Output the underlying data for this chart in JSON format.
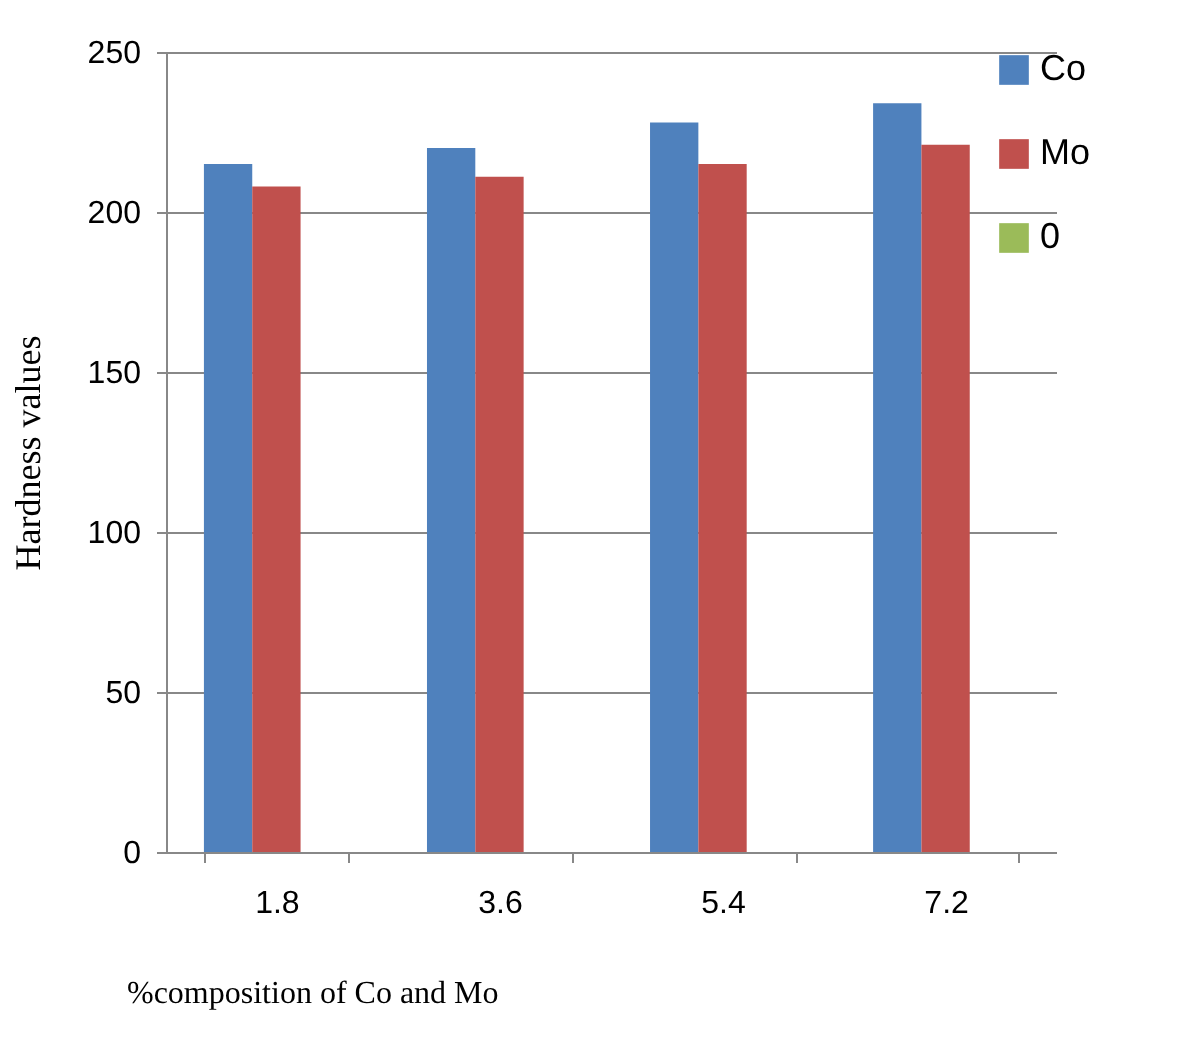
{
  "chart_data": {
    "type": "bar",
    "xlabel": "%composition of Co and Mo",
    "ylabel": "Hardness values",
    "categories": [
      "1.8",
      "3.6",
      "5.4",
      "7.2"
    ],
    "series": [
      {
        "name": "Co",
        "color": "#4f81bd",
        "values": [
          215,
          220,
          228,
          234
        ]
      },
      {
        "name": "Mo",
        "color": "#c0504d",
        "values": [
          208,
          211,
          215,
          221
        ]
      },
      {
        "name": "0",
        "color": "#9bbb59",
        "values": [
          0,
          0,
          0,
          0
        ]
      }
    ],
    "ylim": [
      0,
      250
    ],
    "yticks": [
      0,
      50,
      100,
      150,
      200,
      250
    ],
    "grid": "y",
    "legend": "right"
  }
}
